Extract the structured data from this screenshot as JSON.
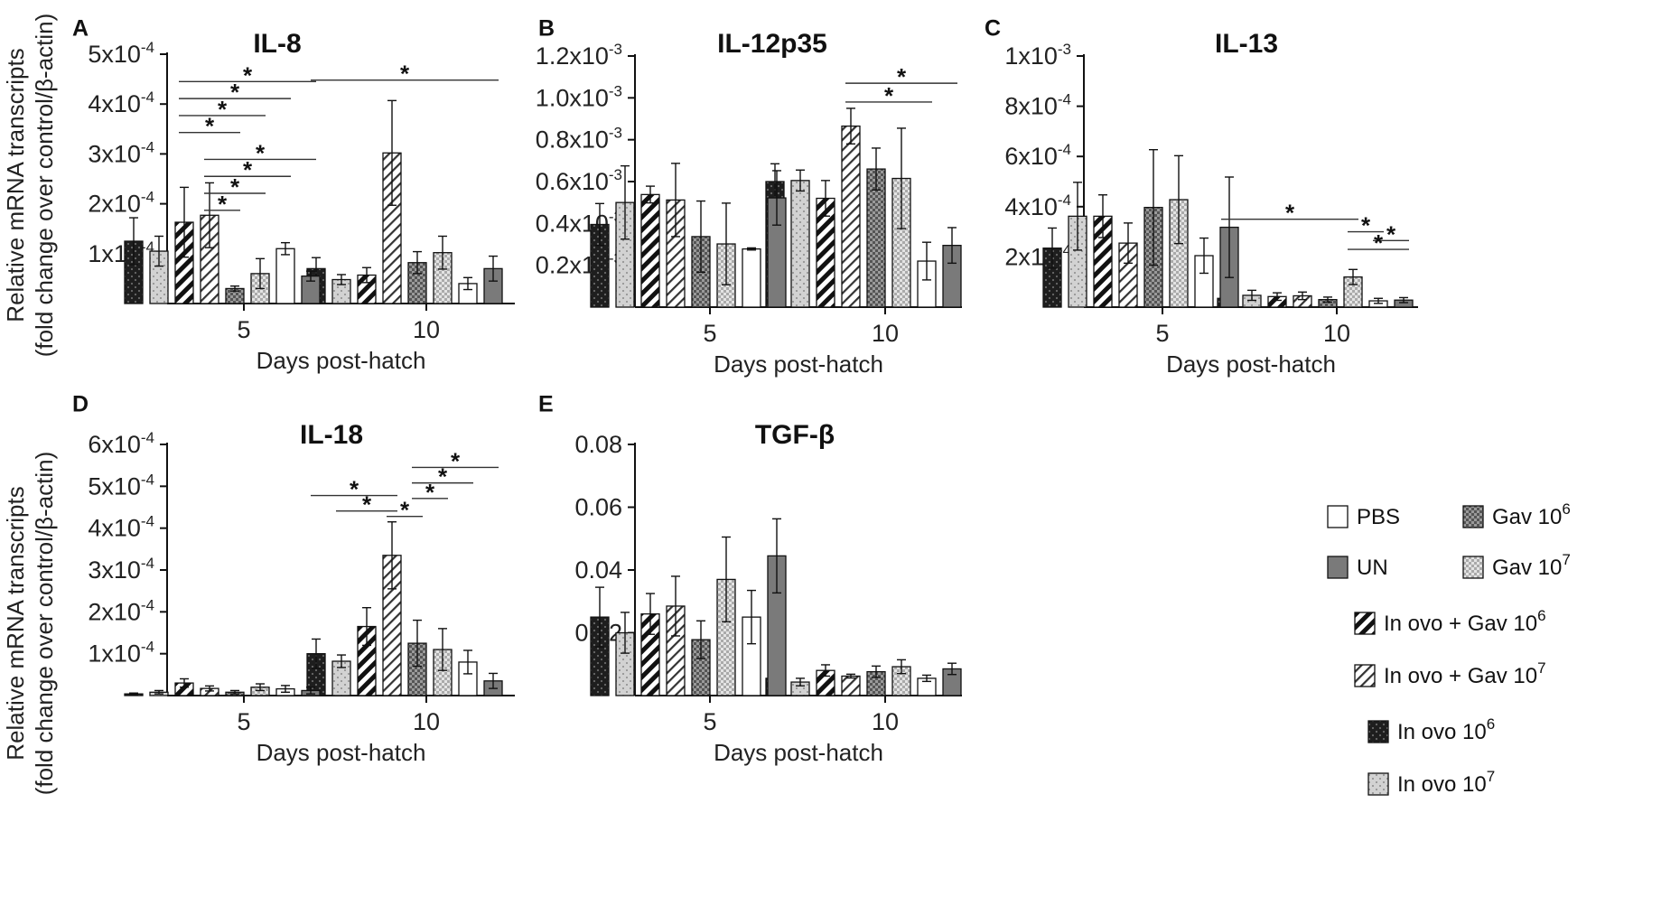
{
  "figure": {
    "ylabel_line1": "Relative mRNA transcripts",
    "ylabel_line2": "(fold change over control/β-actin)",
    "xlabel": "Days post-hatch",
    "day_labels": [
      "5",
      "10"
    ]
  },
  "groups": [
    {
      "key": "io6",
      "name": "In ovo 10",
      "sup": "6"
    },
    {
      "key": "io7",
      "name": "In ovo 10",
      "sup": "7"
    },
    {
      "key": "iog6",
      "name": "In ovo + Gav 10",
      "sup": "6"
    },
    {
      "key": "iog7",
      "name": "In ovo + Gav 10",
      "sup": "7"
    },
    {
      "key": "gav6",
      "name": "Gav 10",
      "sup": "6"
    },
    {
      "key": "gav7",
      "name": "Gav 10",
      "sup": "7"
    },
    {
      "key": "pbs",
      "name": "PBS",
      "sup": ""
    },
    {
      "key": "un",
      "name": "UN",
      "sup": ""
    }
  ],
  "legend_order": [
    "pbs",
    "gav6",
    "un",
    "gav7",
    "iog6",
    "iog7",
    "io6",
    "io7"
  ],
  "colors": {
    "io6": "#1e1e1e",
    "io7": "#cfcfcf",
    "iog6": "#ffffff",
    "iog7": "#ffffff",
    "gav6": "#8a8a8a",
    "gav7": "#d8d8d8",
    "pbs": "#ffffff",
    "un": "#7a7a7a"
  },
  "chart_data": [
    {
      "type": "bar",
      "panel_letter": "A",
      "title": "IL-8",
      "categories": [
        "5",
        "10"
      ],
      "ylim": [
        0,
        0.0005
      ],
      "yticks": [
        {
          "v": 0.0001,
          "m": "1x10",
          "e": "-4"
        },
        {
          "v": 0.0002,
          "m": "2x10",
          "e": "-4"
        },
        {
          "v": 0.0003,
          "m": "3x10",
          "e": "-4"
        },
        {
          "v": 0.0004,
          "m": "4x10",
          "e": "-4"
        },
        {
          "v": 0.0005,
          "m": "5x10",
          "e": "-4"
        }
      ],
      "series": [
        {
          "name": "In ovo 10^6",
          "values": [
            0.000125,
            7e-05
          ],
          "errors": [
            4.7e-05,
            2.2e-05
          ]
        },
        {
          "name": "In ovo 10^7",
          "values": [
            0.000105,
            4.8e-05
          ],
          "errors": [
            3e-05,
            1e-05
          ]
        },
        {
          "name": "In ovo + Gav 10^6",
          "values": [
            0.000163,
            5.7e-05
          ],
          "errors": [
            7e-05,
            1.5e-05
          ]
        },
        {
          "name": "In ovo + Gav 10^7",
          "values": [
            0.000177,
            0.000302
          ],
          "errors": [
            6.5e-05,
            0.000105
          ]
        },
        {
          "name": "Gav 10^6",
          "values": [
            3e-05,
            8.2e-05
          ],
          "errors": [
            5e-06,
            2.2e-05
          ]
        },
        {
          "name": "Gav 10^7",
          "values": [
            6e-05,
            0.000102
          ],
          "errors": [
            3e-05,
            3.3e-05
          ]
        },
        {
          "name": "PBS",
          "values": [
            0.00011,
            4e-05
          ],
          "errors": [
            1.2e-05,
            1.2e-05
          ]
        },
        {
          "name": "UN",
          "values": [
            5.5e-05,
            7e-05
          ],
          "errors": [
            1e-05,
            2.5e-05
          ]
        }
      ],
      "significance": [
        {
          "day": 0,
          "from": 2,
          "to": 7,
          "y": 0.000445,
          "label": "*"
        },
        {
          "day": 0,
          "from": 2,
          "to": 6,
          "y": 0.000411,
          "label": "*"
        },
        {
          "day": 0,
          "from": 2,
          "to": 5,
          "y": 0.000377,
          "label": "*"
        },
        {
          "day": 0,
          "from": 2,
          "to": 4,
          "y": 0.000343,
          "label": "*"
        },
        {
          "day": 0,
          "from": 3,
          "to": 7,
          "y": 0.000289,
          "label": "*"
        },
        {
          "day": 0,
          "from": 3,
          "to": 6,
          "y": 0.000255,
          "label": "*"
        },
        {
          "day": 0,
          "from": 3,
          "to": 5,
          "y": 0.000221,
          "label": "*"
        },
        {
          "day": 0,
          "from": 3,
          "to": 4,
          "y": 0.000187,
          "label": "*"
        },
        {
          "day": 1,
          "from": 0,
          "to": 7,
          "y": 0.000448,
          "label": "*"
        }
      ]
    },
    {
      "type": "bar",
      "panel_letter": "B",
      "title": "IL-12p35",
      "categories": [
        "5",
        "10"
      ],
      "ylim": [
        0,
        0.0012
      ],
      "yticks": [
        {
          "v": 0.0002,
          "m": "0.2x10",
          "e": "-3"
        },
        {
          "v": 0.0004,
          "m": "0.4x10",
          "e": "-3"
        },
        {
          "v": 0.0006,
          "m": "0.6x10",
          "e": "-3"
        },
        {
          "v": 0.0008,
          "m": "0.8x10",
          "e": "-3"
        },
        {
          "v": 0.001,
          "m": "1.0x10",
          "e": "-3"
        },
        {
          "v": 0.0012,
          "m": "1.2x10",
          "e": "-3"
        }
      ],
      "series": [
        {
          "name": "In ovo 10^6",
          "values": [
            0.000395,
            0.0006
          ],
          "errors": [
            0.0001,
            8.5e-05
          ]
        },
        {
          "name": "In ovo 10^7",
          "values": [
            0.0005,
            0.000605
          ],
          "errors": [
            0.000175,
            5e-05
          ]
        },
        {
          "name": "In ovo + Gav 10^6",
          "values": [
            0.000538,
            0.00052
          ],
          "errors": [
            4e-05,
            8.5e-05
          ]
        },
        {
          "name": "In ovo + Gav 10^7",
          "values": [
            0.000512,
            0.000865
          ],
          "errors": [
            0.000175,
            8.5e-05
          ]
        },
        {
          "name": "Gav 10^6",
          "values": [
            0.000337,
            0.00066
          ],
          "errors": [
            0.00017,
            0.0001
          ]
        },
        {
          "name": "Gav 10^7",
          "values": [
            0.000302,
            0.000615
          ],
          "errors": [
            0.000195,
            0.00024
          ]
        },
        {
          "name": "PBS",
          "values": [
            0.000278,
            0.00022
          ],
          "errors": [
            5e-06,
            9e-05
          ]
        },
        {
          "name": "UN",
          "values": [
            0.000522,
            0.000295
          ],
          "errors": [
            0.00013,
            8.5e-05
          ]
        }
      ],
      "significance": [
        {
          "day": 1,
          "from": 3,
          "to": 7,
          "y": 0.00107,
          "label": "*"
        },
        {
          "day": 1,
          "from": 3,
          "to": 6,
          "y": 0.00098,
          "label": "*"
        }
      ]
    },
    {
      "type": "bar",
      "panel_letter": "C",
      "title": "IL-13",
      "categories": [
        "5",
        "10"
      ],
      "ylim": [
        0,
        0.001
      ],
      "yticks": [
        {
          "v": 0.0002,
          "m": "2x10",
          "e": "-4"
        },
        {
          "v": 0.0004,
          "m": "4x10",
          "e": "-4"
        },
        {
          "v": 0.0006,
          "m": "6x10",
          "e": "-4"
        },
        {
          "v": 0.0008,
          "m": "8x10",
          "e": "-4"
        },
        {
          "v": 0.001,
          "m": "1x10",
          "e": "-3"
        }
      ],
      "series": [
        {
          "name": "In ovo 10^6",
          "values": [
            0.000235,
            3.5e-05
          ],
          "errors": [
            8e-05,
            1.5e-05
          ]
        },
        {
          "name": "In ovo 10^7",
          "values": [
            0.000362,
            4.7e-05
          ],
          "errors": [
            0.000135,
            2e-05
          ]
        },
        {
          "name": "In ovo + Gav 10^6",
          "values": [
            0.000362,
            4.2e-05
          ],
          "errors": [
            8.5e-05,
            1.5e-05
          ]
        },
        {
          "name": "In ovo + Gav 10^7",
          "values": [
            0.000255,
            4.5e-05
          ],
          "errors": [
            8e-05,
            1.5e-05
          ]
        },
        {
          "name": "Gav 10^6",
          "values": [
            0.000397,
            3e-05
          ],
          "errors": [
            0.00023,
            1e-05
          ]
        },
        {
          "name": "Gav 10^7",
          "values": [
            0.000428,
            0.00012
          ],
          "errors": [
            0.000175,
            3e-05
          ]
        },
        {
          "name": "PBS",
          "values": [
            0.000205,
            2.5e-05
          ],
          "errors": [
            7e-05,
            1e-05
          ]
        },
        {
          "name": "UN",
          "values": [
            0.000318,
            2.8e-05
          ],
          "errors": [
            0.0002,
            1e-05
          ]
        }
      ],
      "significance": [
        {
          "day": 1,
          "from": 0,
          "to": 5,
          "y": 0.00035,
          "label": "*"
        },
        {
          "day": 1,
          "from": 5,
          "to": 6,
          "y": 0.0003,
          "label": "*"
        },
        {
          "day": 1,
          "from": 6,
          "to": 7,
          "y": 0.000265,
          "label": "*"
        },
        {
          "day": 1,
          "from": 5,
          "to": 7,
          "y": 0.00023,
          "label": "*"
        }
      ]
    },
    {
      "type": "bar",
      "panel_letter": "D",
      "title": "IL-18",
      "categories": [
        "5",
        "10"
      ],
      "ylim": [
        0,
        0.0006
      ],
      "yticks": [
        {
          "v": 0.0001,
          "m": "1x10",
          "e": "-4"
        },
        {
          "v": 0.0002,
          "m": "2x10",
          "e": "-4"
        },
        {
          "v": 0.0003,
          "m": "3x10",
          "e": "-4"
        },
        {
          "v": 0.0004,
          "m": "4x10",
          "e": "-4"
        },
        {
          "v": 0.0005,
          "m": "5x10",
          "e": "-4"
        },
        {
          "v": 0.0006,
          "m": "6x10",
          "e": "-4"
        }
      ],
      "series": [
        {
          "name": "In ovo 10^6",
          "values": [
            4e-06,
            0.0001
          ],
          "errors": [
            2e-06,
            3.5e-05
          ]
        },
        {
          "name": "In ovo 10^7",
          "values": [
            8e-06,
            8.2e-05
          ],
          "errors": [
            4e-06,
            1.5e-05
          ]
        },
        {
          "name": "In ovo + Gav 10^6",
          "values": [
            3e-05,
            0.000165
          ],
          "errors": [
            1e-05,
            4.5e-05
          ]
        },
        {
          "name": "In ovo + Gav 10^7",
          "values": [
            1.7e-05,
            0.000335
          ],
          "errors": [
            6e-06,
            8e-05
          ]
        },
        {
          "name": "Gav 10^6",
          "values": [
            8e-06,
            0.000125
          ],
          "errors": [
            4e-06,
            5.5e-05
          ]
        },
        {
          "name": "Gav 10^7",
          "values": [
            2e-05,
            0.00011
          ],
          "errors": [
            8e-06,
            5e-05
          ]
        },
        {
          "name": "PBS",
          "values": [
            1.6e-05,
            8e-05
          ],
          "errors": [
            8e-06,
            2.8e-05
          ]
        },
        {
          "name": "UN",
          "values": [
            1.2e-05,
            3.5e-05
          ],
          "errors": [
            8e-06,
            1.8e-05
          ]
        }
      ],
      "significance": [
        {
          "day": 1,
          "from": 4,
          "to": 7,
          "y": 0.000545,
          "label": "*"
        },
        {
          "day": 1,
          "from": 4,
          "to": 6,
          "y": 0.000508,
          "label": "*"
        },
        {
          "day": 1,
          "from": 0,
          "to": 3,
          "y": 0.000478,
          "label": "*"
        },
        {
          "day": 1,
          "from": 4,
          "to": 5,
          "y": 0.000471,
          "label": "*"
        },
        {
          "day": 1,
          "from": 1,
          "to": 3,
          "y": 0.000441,
          "label": "*"
        },
        {
          "day": 1,
          "from": 3,
          "to": 4,
          "y": 0.000428,
          "label": "*"
        }
      ]
    },
    {
      "type": "bar",
      "panel_letter": "E",
      "title": "TGF-β",
      "categories": [
        "5",
        "10"
      ],
      "ylim": [
        0,
        0.08
      ],
      "yticks": [
        {
          "v": 0.02,
          "m": "0.02",
          "e": ""
        },
        {
          "v": 0.04,
          "m": "0.04",
          "e": ""
        },
        {
          "v": 0.06,
          "m": "0.06",
          "e": ""
        },
        {
          "v": 0.08,
          "m": "0.08",
          "e": ""
        }
      ],
      "series": [
        {
          "name": "In ovo 10^6",
          "values": [
            0.025,
            0.0055
          ],
          "errors": [
            0.0095,
            0.0008
          ]
        },
        {
          "name": "In ovo 10^7",
          "values": [
            0.02,
            0.0043
          ],
          "errors": [
            0.0065,
            0.0012
          ]
        },
        {
          "name": "In ovo + Gav 10^6",
          "values": [
            0.026,
            0.008
          ],
          "errors": [
            0.0065,
            0.0018
          ]
        },
        {
          "name": "In ovo + Gav 10^7",
          "values": [
            0.0285,
            0.0062
          ],
          "errors": [
            0.0095,
            0.0006
          ]
        },
        {
          "name": "Gav 10^6",
          "values": [
            0.0178,
            0.0076
          ],
          "errors": [
            0.006,
            0.0018
          ]
        },
        {
          "name": "Gav 10^7",
          "values": [
            0.037,
            0.0092
          ],
          "errors": [
            0.0135,
            0.0022
          ]
        },
        {
          "name": "PBS",
          "values": [
            0.025,
            0.0055
          ],
          "errors": [
            0.0085,
            0.001
          ]
        },
        {
          "name": "UN",
          "values": [
            0.0445,
            0.0085
          ],
          "errors": [
            0.0118,
            0.0018
          ]
        }
      ],
      "significance": []
    }
  ]
}
